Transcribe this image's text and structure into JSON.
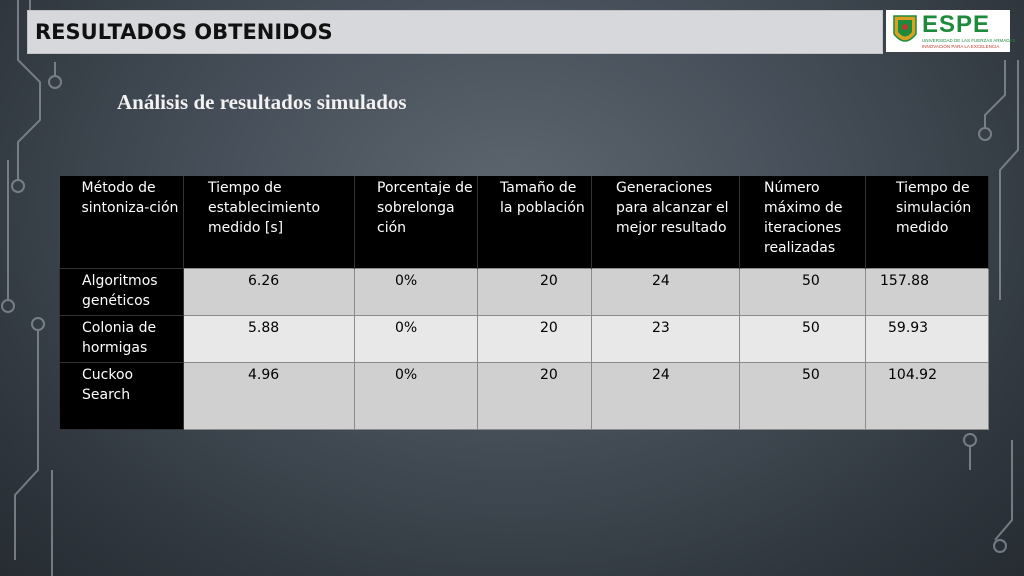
{
  "header": {
    "title": "RESULTADOS OBTENIDOS",
    "logo": {
      "name": "ESPE",
      "line1": "UNIVERSIDAD DE LAS FUERZAS ARMADAS",
      "line2": "INNOVACIÓN PARA LA EXCELENCIA"
    }
  },
  "subtitle": "Análisis de resultados simulados",
  "table": {
    "headers": [
      "Método de sintoniza-ción",
      "Tiempo de establecimiento medido [s]",
      "Porcentaje de sobrelonga ción",
      "Tamaño de la población",
      "Generaciones para alcanzar el mejor resultado",
      "Número máximo de iteraciones realizadas",
      "Tiempo de simulación medido"
    ],
    "rows": [
      [
        "Algoritmos genéticos",
        "6.26",
        "0%",
        "20",
        "24",
        "50",
        "157.88"
      ],
      [
        "Colonia de hormigas",
        "5.88",
        "0%",
        "20",
        "23",
        "50",
        "59.93"
      ],
      [
        "Cuckoo Search",
        "4.96",
        "0%",
        "20",
        "24",
        "50",
        "104.92"
      ]
    ]
  },
  "colors": {
    "background": "#47505a",
    "title_bar": "#d6d8db",
    "logo_green": "#1e8a3c",
    "header_black": "#000000"
  }
}
